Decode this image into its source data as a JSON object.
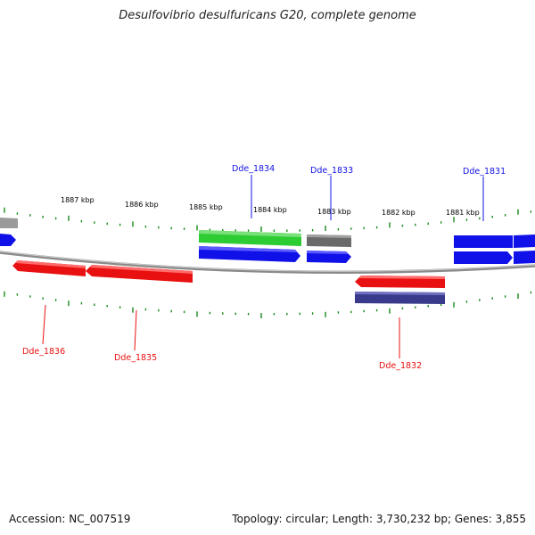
{
  "title": "Desulfovibrio desulfuricans G20, complete genome",
  "footer": {
    "accession": "Accession: NC_007519",
    "summary": "Topology: circular; Length: 3,730,232 bp; Genes: 3,855"
  },
  "colors": {
    "forward": "#0a14f0",
    "reverse": "#f01010",
    "rna": "#33cc33",
    "pseudo": "#666666",
    "reverse_dark": "#3a3a8a",
    "ruler": "#1a8a1a",
    "backbone": "#888888"
  },
  "ruler_ticks": [
    "1887 kbp",
    "1886 kbp",
    "1885 kbp",
    "1884 kbp",
    "1883 kbp",
    "1882 kbp",
    "1881 kbp"
  ],
  "gene_labels": [
    {
      "text": "Dde_1834",
      "strand": "forward"
    },
    {
      "text": "Dde_1833",
      "strand": "forward"
    },
    {
      "text": "Dde_1831",
      "strand": "forward"
    },
    {
      "text": "Dde_1836",
      "strand": "reverse"
    },
    {
      "text": "Dde_1835",
      "strand": "reverse"
    },
    {
      "text": "Dde_1832",
      "strand": "reverse"
    }
  ]
}
